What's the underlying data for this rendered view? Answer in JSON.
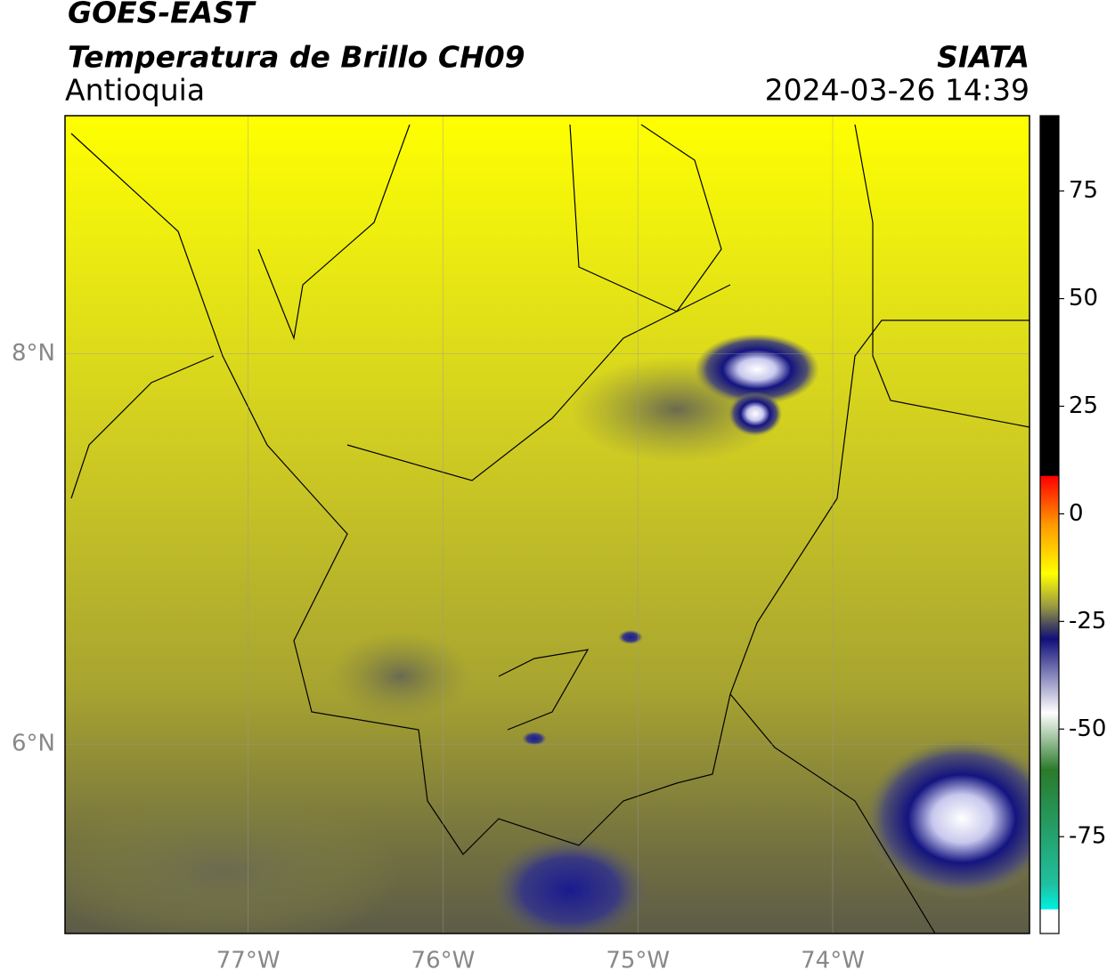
{
  "header": {
    "satellite": "GOES-EAST",
    "product": "Temperatura de Brillo CH09",
    "region": "Antioquia",
    "source": "SIATA",
    "datetime": "2024-03-26 14:39"
  },
  "map": {
    "xlim": [
      -77.94,
      -72.99
    ],
    "ylim": [
      5.03,
      9.22
    ],
    "xticks": [
      {
        "value": -77,
        "label": "77°W"
      },
      {
        "value": -76,
        "label": "76°W"
      },
      {
        "value": -75,
        "label": "75°W"
      },
      {
        "value": -74,
        "label": "74°W"
      }
    ],
    "yticks": [
      {
        "value": 8,
        "label": "8°N"
      },
      {
        "value": 6,
        "label": "6°N"
      }
    ]
  },
  "colorbar": {
    "lim": [
      -97.5,
      92.5
    ],
    "ticks": [
      75,
      50,
      25,
      0,
      -25,
      -50,
      -75
    ]
  }
}
